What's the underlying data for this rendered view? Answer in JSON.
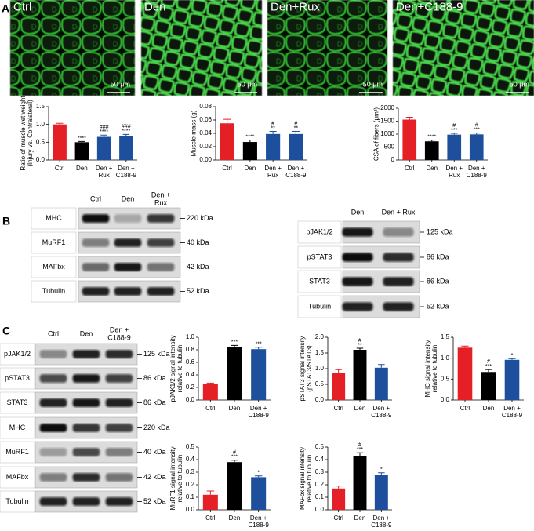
{
  "panel_labels": [
    "A",
    "B",
    "C"
  ],
  "images": [
    {
      "label": "Ctrl",
      "scale_bar": "50 μm"
    },
    {
      "label": "Den",
      "scale_bar": "50 μm"
    },
    {
      "label": "Den+Rux",
      "scale_bar": "50 μm"
    },
    {
      "label": "Den+C188-9",
      "scale_bar": "50 μm"
    }
  ],
  "blots": [
    {
      "lanes": [
        "Ctrl",
        "Den",
        [
          "Den +",
          "Rux"
        ]
      ],
      "rows": [
        {
          "protein": "MHC",
          "size": "220 kDa"
        },
        {
          "protein": "MuRF1",
          "size": "40 kDa"
        },
        {
          "protein": "MAFbx",
          "size": "42 kDa"
        },
        {
          "protein": "Tubulin",
          "size": "52 kDa"
        }
      ]
    },
    {
      "lanes": [
        "Den",
        "Den + Rux"
      ],
      "rows": [
        {
          "protein": "pJAK1/2",
          "size": "125 kDa"
        },
        {
          "protein": "pSTAT3",
          "size": "86 kDa"
        },
        {
          "protein": "STAT3",
          "size": "86 kDa"
        },
        {
          "protein": "Tubulin",
          "size": "52 kDa"
        }
      ]
    },
    {
      "lanes": [
        "Ctrl",
        "Den",
        [
          "Den +",
          "C188-9"
        ]
      ],
      "rows": [
        {
          "protein": "pJAK1/2",
          "size": "125 kDa"
        },
        {
          "protein": "pSTAT3",
          "size": "86 kDa"
        },
        {
          "protein": "STAT3",
          "size": "86 kDa"
        },
        {
          "protein": "MHC",
          "size": "220 kDa"
        },
        {
          "protein": "MuRF1",
          "size": "40 kDa"
        },
        {
          "protein": "MAFbx",
          "size": "42 kDa"
        },
        {
          "protein": "Tubulin",
          "size": "52 kDa"
        }
      ]
    }
  ],
  "chart_data": [
    {
      "type": "bar",
      "ylabel": [
        "Ratio of muscle wet weight",
        "(Injury vs. Contralateral)"
      ],
      "categories": [
        "Ctrl",
        "Den",
        [
          "Den +",
          "Rux"
        ],
        [
          "Den +",
          "C188-9"
        ]
      ],
      "values": [
        1.0,
        0.5,
        0.65,
        0.67
      ],
      "errors": [
        0.03,
        0.02,
        0.05,
        0.05
      ],
      "annotations": [
        [],
        [
          "****"
        ],
        [
          "###",
          "****"
        ],
        [
          "###",
          "****"
        ]
      ],
      "colors": [
        "#e41f26",
        "#000000",
        "#1d4f9c",
        "#1d4f9c"
      ],
      "ylim": [
        0,
        1.5
      ],
      "yticks": [
        {
          "value": 0,
          "label": "0.0"
        },
        {
          "value": 0.5,
          "label": "0.5"
        },
        {
          "value": 1,
          "label": "1.0"
        },
        {
          "value": 1.5,
          "label": "1.5"
        }
      ]
    },
    {
      "type": "bar",
      "ylabel": [
        "Muscle mass (g)"
      ],
      "categories": [
        "Ctrl",
        "Den",
        [
          "Den +",
          "Rux"
        ],
        [
          "Den +",
          "C188-9"
        ]
      ],
      "values": [
        0.055,
        0.027,
        0.039,
        0.039
      ],
      "errors": [
        0.006,
        0.003,
        0.004,
        0.004
      ],
      "annotations": [
        [],
        [
          "****"
        ],
        [
          "#",
          "**"
        ],
        [
          "#",
          "**"
        ]
      ],
      "colors": [
        "#e41f26",
        "#000000",
        "#1d4f9c",
        "#1d4f9c"
      ],
      "ylim": [
        0,
        0.08
      ],
      "yticks": [
        {
          "value": 0,
          "label": "0.00"
        },
        {
          "value": 0.02,
          "label": "0.02"
        },
        {
          "value": 0.04,
          "label": "0.04"
        },
        {
          "value": 0.06,
          "label": "0.06"
        },
        {
          "value": 0.08,
          "label": "0.08"
        }
      ]
    },
    {
      "type": "bar",
      "ylabel": [
        "CSA of fibers (μm²)"
      ],
      "categories": [
        "Ctrl",
        "Den",
        [
          "Den +",
          "Rux"
        ],
        [
          "Den +",
          "C188-9"
        ]
      ],
      "values": [
        1560,
        720,
        980,
        990
      ],
      "errors": [
        90,
        50,
        50,
        50
      ],
      "annotations": [
        [],
        [
          "****"
        ],
        [
          "#",
          "***"
        ],
        [
          "#",
          "***"
        ]
      ],
      "colors": [
        "#e41f26",
        "#000000",
        "#1d4f9c",
        "#1d4f9c"
      ],
      "ylim": [
        0,
        2000
      ],
      "yticks": [
        0,
        500,
        1000,
        1500,
        2000
      ]
    },
    {
      "type": "bar",
      "ylabel": [
        "pJAK1/2 signal intensity",
        "relative to tubulin"
      ],
      "categories": [
        "Ctrl",
        "Den",
        [
          "Den +",
          "C188-9"
        ]
      ],
      "values": [
        0.25,
        0.84,
        0.81
      ],
      "errors": [
        0.02,
        0.03,
        0.03
      ],
      "annotations": [
        [],
        [
          "***"
        ],
        [
          "***"
        ]
      ],
      "colors": [
        "#e41f26",
        "#000000",
        "#1d4f9c"
      ],
      "ylim": [
        0,
        1
      ],
      "yticks": [
        {
          "value": 0,
          "label": "0.0"
        },
        0.2,
        0.4,
        0.6,
        0.8,
        {
          "value": 1,
          "label": "1.0"
        }
      ]
    },
    {
      "type": "bar",
      "ylabel": [
        "pSTAT3 signal intensity",
        "(pSTAT3/STAT3)"
      ],
      "categories": [
        "Ctrl",
        "Den",
        [
          "Den +",
          "C188-9"
        ]
      ],
      "values": [
        0.85,
        1.6,
        1.03
      ],
      "errors": [
        0.12,
        0.05,
        0.1
      ],
      "annotations": [
        [],
        [
          "#",
          "**"
        ],
        []
      ],
      "colors": [
        "#e41f26",
        "#000000",
        "#1d4f9c"
      ],
      "ylim": [
        0,
        2
      ],
      "yticks": [
        {
          "value": 0,
          "label": "0.0"
        },
        0.5,
        {
          "value": 1,
          "label": "1.0"
        },
        1.5,
        {
          "value": 2,
          "label": "2.0"
        }
      ]
    },
    {
      "type": "bar",
      "ylabel": [
        "MHC signal intensity",
        "relative to tubulin"
      ],
      "categories": [
        "Ctrl",
        "Den",
        [
          "Den +",
          "C188-9"
        ]
      ],
      "values": [
        1.25,
        0.67,
        0.96
      ],
      "errors": [
        0.04,
        0.06,
        0.03
      ],
      "annotations": [
        [],
        [
          "#",
          "***"
        ],
        [
          "*"
        ]
      ],
      "colors": [
        "#e41f26",
        "#000000",
        "#1d4f9c"
      ],
      "ylim": [
        0,
        1.5
      ],
      "yticks": [
        {
          "value": 0,
          "label": "0.0"
        },
        0.5,
        {
          "value": 1,
          "label": "1.0"
        },
        1.5
      ]
    },
    {
      "type": "bar",
      "ylabel": [
        "MuRF1 signal intensity",
        "relative to tubulin"
      ],
      "categories": [
        "Ctrl",
        "Den",
        [
          "Den +",
          "C188-9"
        ]
      ],
      "values": [
        0.12,
        0.38,
        0.26
      ],
      "errors": [
        0.03,
        0.015,
        0.01
      ],
      "annotations": [
        [],
        [
          "#",
          "***"
        ],
        [
          "*"
        ]
      ],
      "colors": [
        "#e41f26",
        "#000000",
        "#1d4f9c"
      ],
      "ylim": [
        0,
        0.5
      ],
      "yticks": [
        {
          "value": 0,
          "label": "0.0"
        },
        0.1,
        0.2,
        0.3,
        0.4,
        0.5
      ]
    },
    {
      "type": "bar",
      "ylabel": [
        "MAFbx signal intensity",
        "relative to tubulin"
      ],
      "categories": [
        "Ctrl",
        "Den",
        [
          "Den +",
          "C188-9"
        ]
      ],
      "values": [
        0.17,
        0.43,
        0.28
      ],
      "errors": [
        0.02,
        0.025,
        0.015
      ],
      "annotations": [
        [],
        [
          "#",
          "***"
        ],
        [
          "*"
        ]
      ],
      "colors": [
        "#e41f26",
        "#000000",
        "#1d4f9c"
      ],
      "ylim": [
        0,
        0.5
      ],
      "yticks": [
        {
          "value": 0,
          "label": "0.0"
        },
        0.1,
        0.2,
        0.3,
        0.4,
        0.5
      ]
    }
  ]
}
